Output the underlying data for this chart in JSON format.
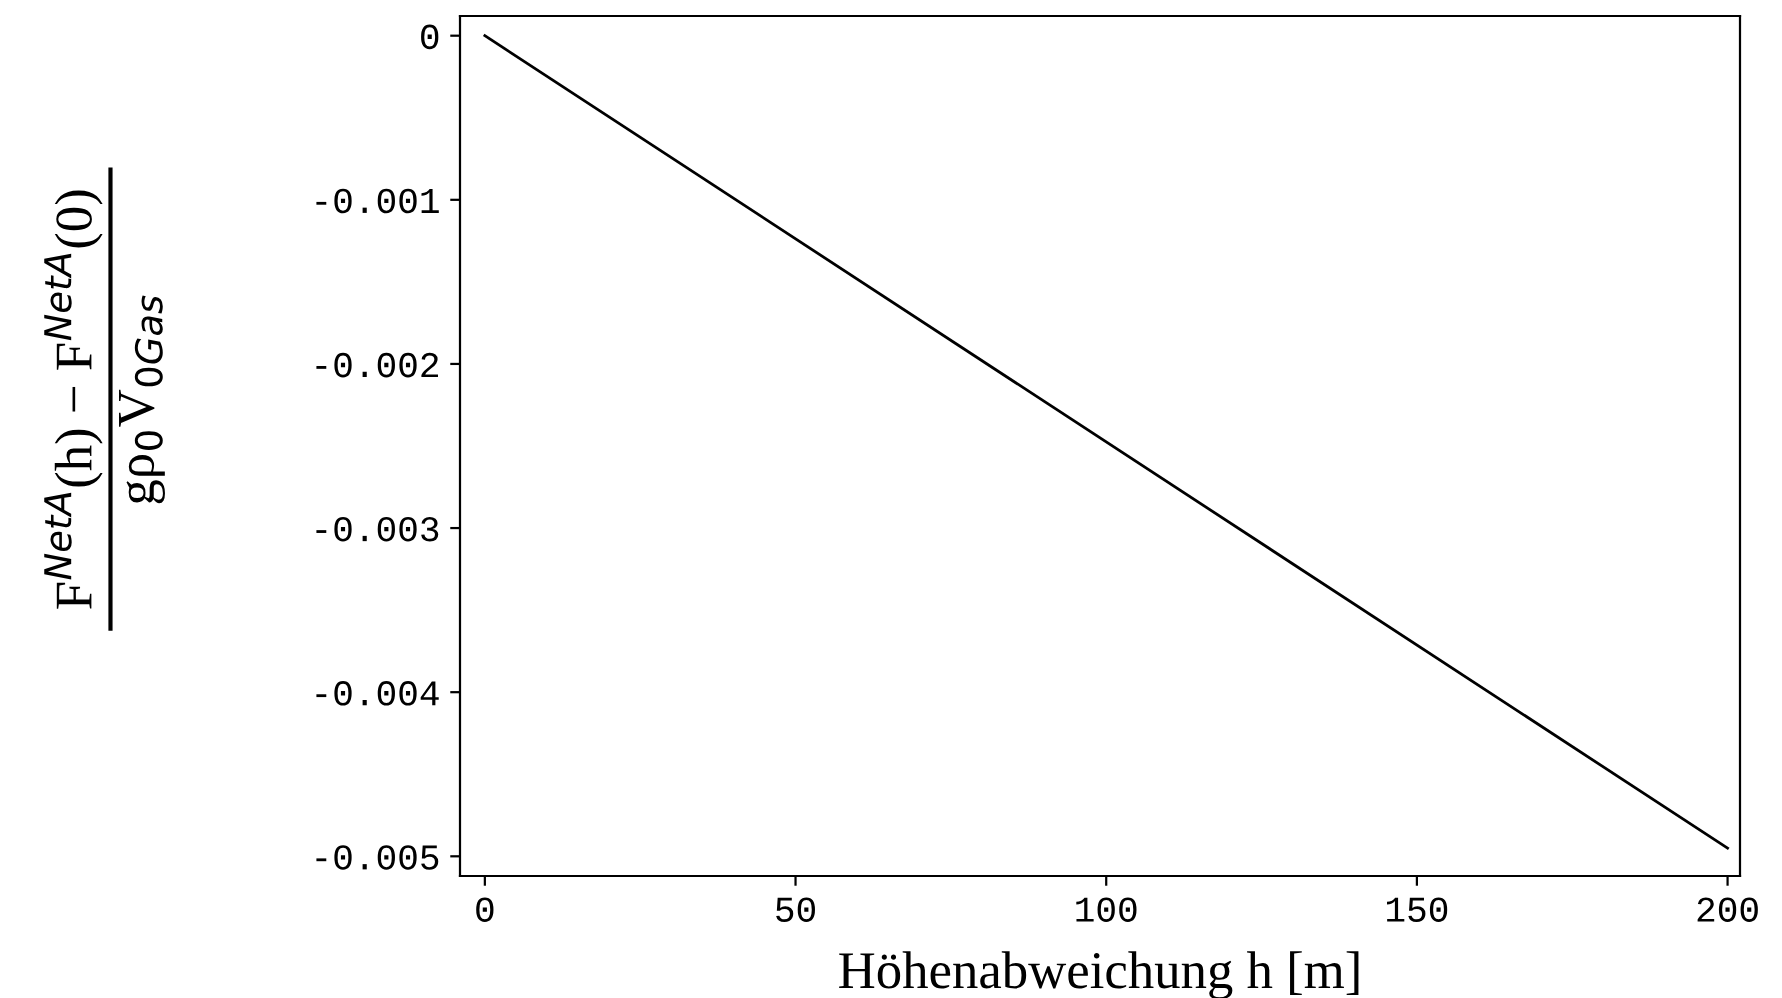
{
  "chart_data": {
    "type": "line",
    "xlabel": "Höhenabweichung h [m]",
    "ylabel": "F$^{NetA}$(h) − F$^{NetA}$(0)\ngρ$_{0}$V$_{0Gas}$",
    "x": [
      0,
      200
    ],
    "series": [
      {
        "color": "#000000",
        "values": [
          0,
          -0.00495
        ]
      }
    ],
    "xlim": [
      -4,
      202
    ],
    "ylim": [
      -0.00512,
      0.00012
    ],
    "xticks": [
      0,
      50,
      100,
      150,
      200
    ],
    "yticks": [
      0,
      -0.001,
      -0.002,
      -0.003,
      -0.004,
      -0.005
    ],
    "grid": false,
    "legend": false,
    "marker": "none",
    "line_style": "solid"
  }
}
